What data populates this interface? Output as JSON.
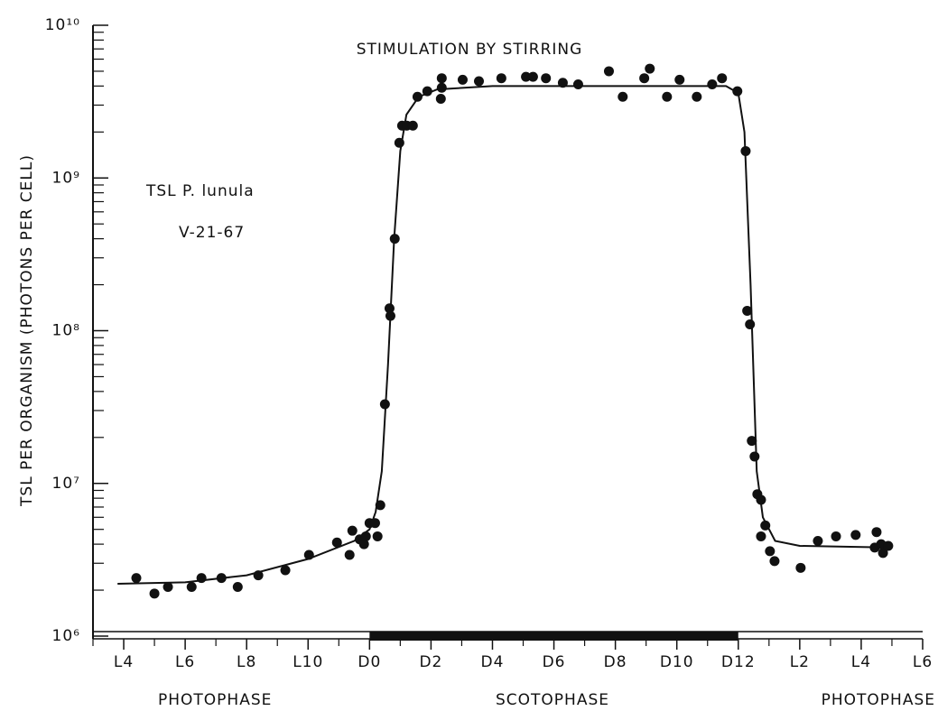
{
  "chart_data": {
    "type": "scatter",
    "title": "STIMULATION BY STIRRING",
    "y_label": "TSL PER ORGANISM (PHOTONS PER CELL)",
    "annotations": [
      "TSL P. lunula",
      "V-21-67"
    ],
    "phase_labels": [
      "PHOTOPHASE",
      "SCOTOPHASE",
      "PHOTOPHASE"
    ],
    "log_y": true,
    "color": "#111111",
    "xlim": [
      -9,
      18
    ],
    "ylim": [
      1000000,
      10000000000
    ],
    "xticks": [
      {
        "value": -8,
        "label": "L4"
      },
      {
        "value": -6,
        "label": "L6"
      },
      {
        "value": -4,
        "label": "L8"
      },
      {
        "value": -2,
        "label": "L10"
      },
      {
        "value": 0,
        "label": "D0"
      },
      {
        "value": 2,
        "label": "D2"
      },
      {
        "value": 4,
        "label": "D4"
      },
      {
        "value": 6,
        "label": "D6"
      },
      {
        "value": 8,
        "label": "D8"
      },
      {
        "value": 10,
        "label": "D10"
      },
      {
        "value": 12,
        "label": "D12"
      },
      {
        "value": 14,
        "label": "L2"
      },
      {
        "value": 16,
        "label": "L4"
      },
      {
        "value": 18,
        "label": "L6"
      }
    ],
    "xminorticks": [
      -9,
      -7,
      -5,
      -3,
      -1,
      1,
      3,
      5,
      7,
      9,
      11,
      13,
      15,
      17
    ],
    "yticks": [
      {
        "value": 1000000,
        "label": "10⁶"
      },
      {
        "value": 10000000,
        "label": "10⁷"
      },
      {
        "value": 100000000,
        "label": "10⁸"
      },
      {
        "value": 1000000000,
        "label": "10⁹"
      },
      {
        "value": 10000000000,
        "label": "10¹⁰"
      }
    ],
    "yminorticks": [
      2000000,
      3000000,
      4000000,
      5000000,
      6000000,
      7000000,
      8000000,
      9000000,
      20000000,
      30000000,
      40000000,
      50000000,
      60000000,
      70000000,
      80000000,
      90000000,
      200000000,
      300000000,
      400000000,
      500000000,
      600000000,
      700000000,
      800000000,
      900000000,
      2000000000,
      3000000000,
      4000000000,
      5000000000,
      6000000000,
      7000000000,
      8000000000,
      9000000000
    ],
    "dark_bar": [
      0,
      12
    ],
    "points": {
      "x": [
        -7.59,
        -7.0,
        -6.56,
        -5.79,
        -5.47,
        -4.82,
        -4.29,
        -3.62,
        -2.74,
        -1.97,
        -1.06,
        -0.65,
        -0.56,
        -0.32,
        -0.18,
        -0.12,
        0,
        0.18,
        0.26,
        0.35,
        0.5,
        0.65,
        0.68,
        0.82,
        0.97,
        1.06,
        1.21,
        1.41,
        1.56,
        1.88,
        2.35,
        2.35,
        2.32,
        3.03,
        3.56,
        4.29,
        5.09,
        5.32,
        5.74,
        6.29,
        6.79,
        7.79,
        8.24,
        8.94,
        9.12,
        9.68,
        10.09,
        10.65,
        11.15,
        11.47,
        11.97,
        12.24,
        12.29,
        12.38,
        12.44,
        12.53,
        12.62,
        12.74,
        12.88,
        12.74,
        13.03,
        13.18,
        14.03,
        14.59,
        15.18,
        15.82,
        16.5,
        16.44,
        16.71,
        16.65,
        16.88
      ],
      "values": [
        2400000,
        1900000,
        2100000,
        2100000,
        2400000,
        2400000,
        2100000,
        2500000,
        2700000,
        3400000,
        4100000,
        3400000,
        4900000,
        4300000,
        4000000,
        4500000,
        5500000,
        5500000,
        4500000,
        7200000,
        33000000,
        140000000,
        125000000,
        400000000,
        1700000000,
        2200000000,
        2200000000,
        2200000000,
        3400000000,
        3700000000,
        3900000000,
        4500000000,
        3300000000,
        4400000000,
        4300000000,
        4500000000,
        4600000000,
        4600000000,
        4500000000,
        4200000000,
        4100000000,
        5000000000,
        3400000000,
        4500000000,
        5200000000,
        3400000000,
        4400000000,
        3400000000,
        4100000000,
        4500000000,
        3700000000,
        1500000000,
        135000000,
        110000000,
        19000000,
        15000000,
        8500000,
        7800000,
        5300000,
        4500000,
        3600000,
        3100000,
        2800000,
        4200000,
        4500000,
        4600000,
        4800000,
        3800000,
        3500000,
        4000000,
        3900000
      ]
    },
    "curve": {
      "x": [
        -8.2,
        -6,
        -4,
        -2,
        -0.5,
        0,
        0.2,
        0.4,
        0.6,
        0.8,
        1.0,
        1.2,
        1.6,
        2.2,
        4,
        8,
        11.6,
        12.0,
        12.2,
        12.4,
        12.6,
        12.8,
        13.2,
        14,
        17
      ],
      "values": [
        2200000,
        2250000,
        2500000,
        3200000,
        4200000,
        5000000,
        6500000,
        12000000,
        60000000,
        400000000,
        1500000000,
        2600000000,
        3400000000,
        3800000000,
        4000000000,
        4000000000,
        4000000000,
        3600000000,
        2000000000,
        200000000,
        12000000,
        6000000,
        4200000,
        3900000,
        3800000
      ]
    }
  }
}
